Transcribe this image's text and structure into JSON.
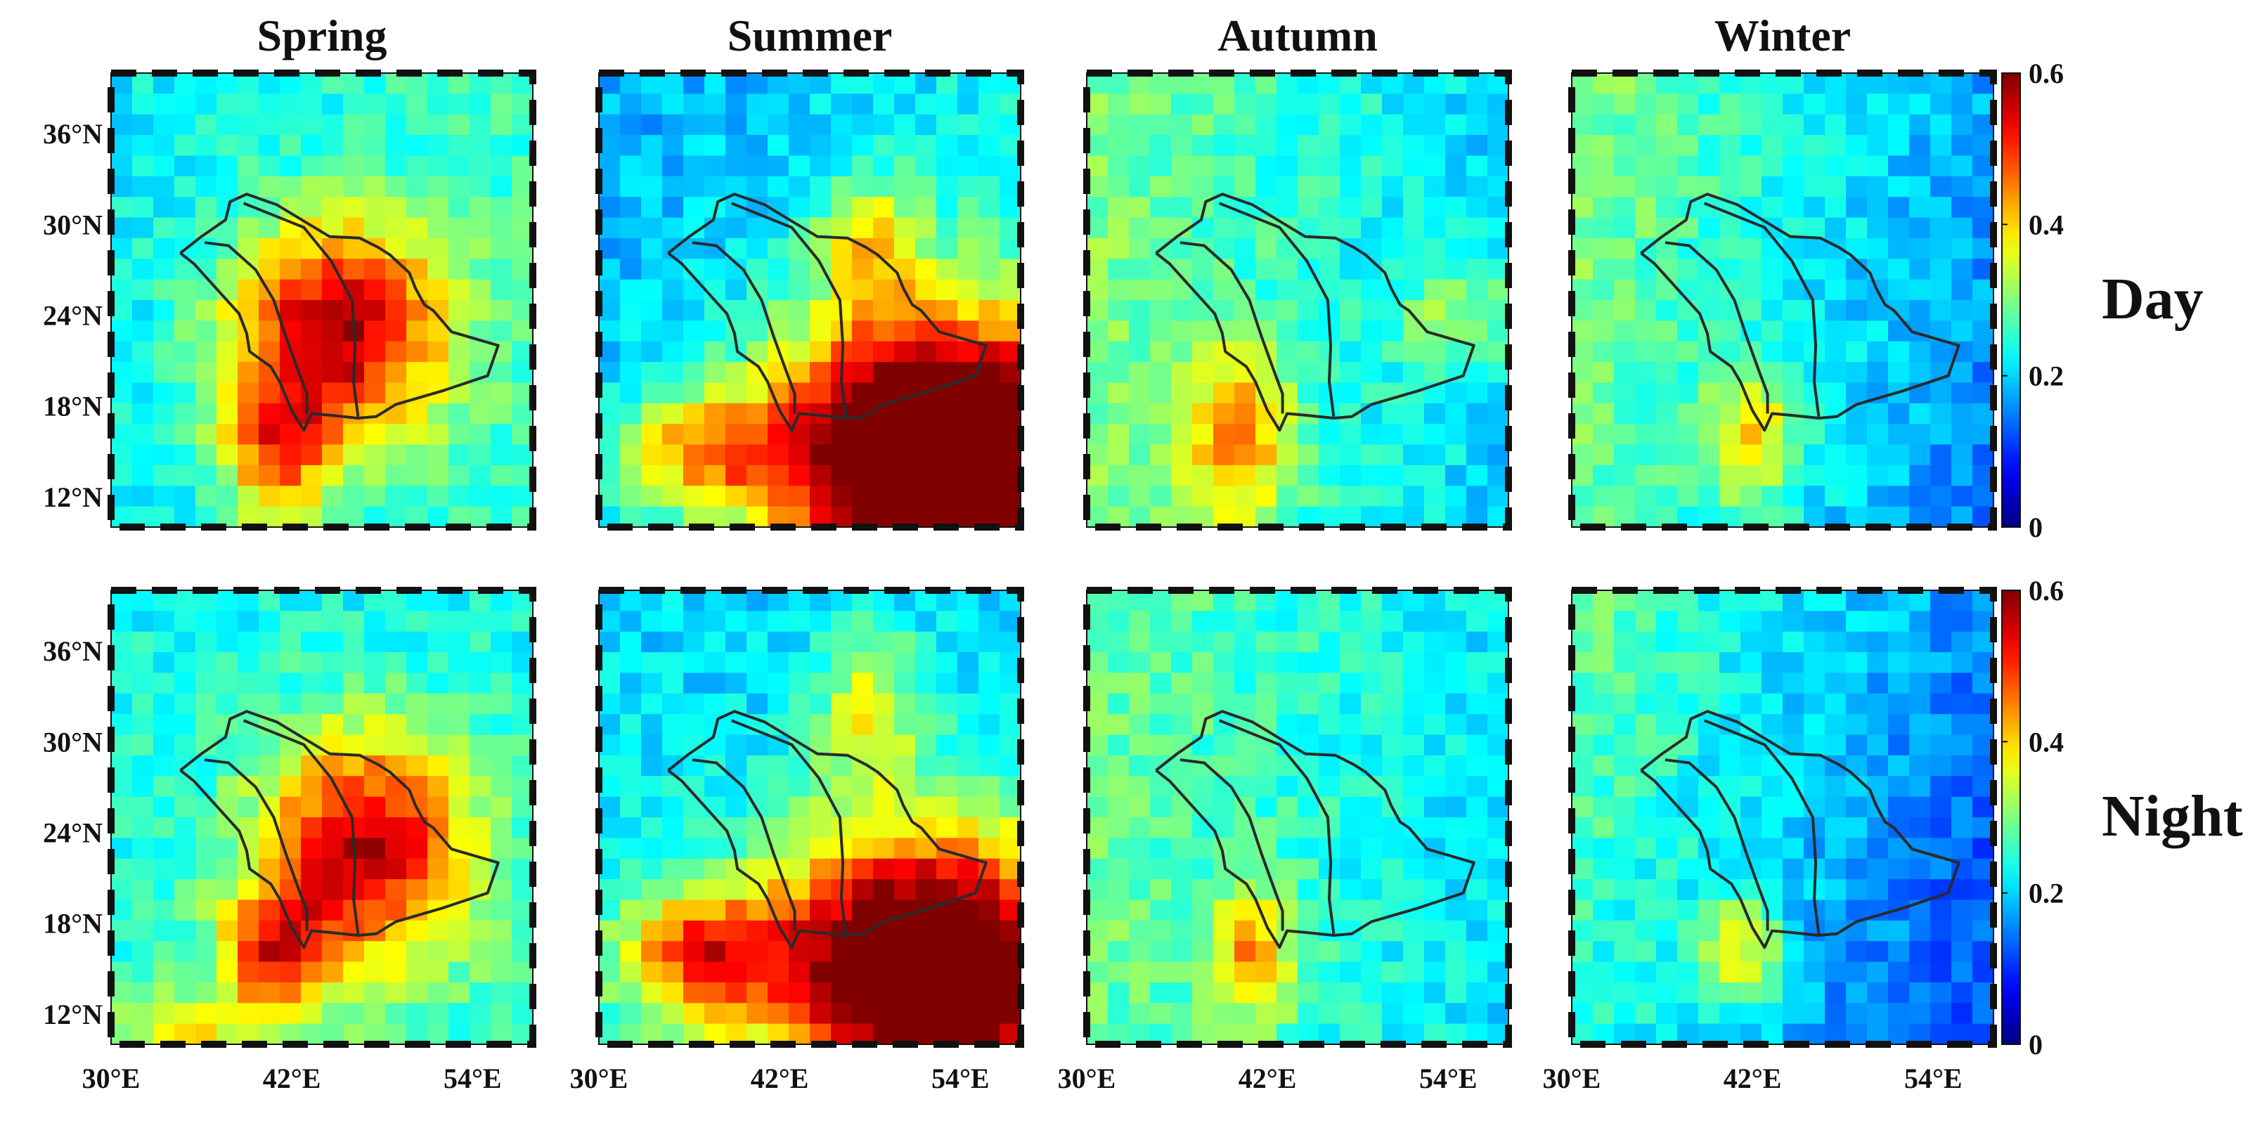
{
  "chart_data": {
    "type": "heatmap",
    "title": "",
    "columns": [
      "Spring",
      "Summer",
      "Autumn",
      "Winter"
    ],
    "rows": [
      "Day",
      "Night"
    ],
    "x_tick_labels": [
      "30°E",
      "42°E",
      "54°E"
    ],
    "x_tick_values": [
      30,
      42,
      54
    ],
    "y_tick_labels": [
      "36°N",
      "30°N",
      "24°N",
      "18°N",
      "12°N"
    ],
    "y_tick_values": [
      36,
      30,
      24,
      18,
      12
    ],
    "xlim": [
      30,
      58
    ],
    "ylim": [
      10,
      40
    ],
    "colorbar": {
      "min": 0,
      "max": 0.6,
      "ticks": [
        0,
        0.2,
        0.4,
        0.6
      ],
      "tick_labels": [
        "0",
        "0.2",
        "0.4",
        "0.6"
      ],
      "colormap": "jet"
    },
    "panels": [
      {
        "row": "Day",
        "season": "Spring",
        "base": 0.24,
        "trend": -0.02,
        "n_to_s": 0.0,
        "hotspots": [
          {
            "lon": 45,
            "lat": 23,
            "amp": 0.34,
            "sx": 5,
            "sy": 5
          },
          {
            "lon": 41,
            "lat": 15,
            "amp": 0.22,
            "sx": 2.5,
            "sy": 3.5
          }
        ]
      },
      {
        "row": "Day",
        "season": "Summer",
        "base": 0.22,
        "trend": -0.03,
        "n_to_s": 0.02,
        "hotspots": [
          {
            "lon": 52,
            "lat": 15,
            "amp": 0.6,
            "sx": 7,
            "sy": 6
          },
          {
            "lon": 48,
            "lat": 29,
            "amp": 0.15,
            "sx": 2.5,
            "sy": 3
          },
          {
            "lon": 37,
            "lat": 15,
            "amp": 0.2,
            "sx": 4,
            "sy": 2.5
          }
        ]
      },
      {
        "row": "Day",
        "season": "Autumn",
        "base": 0.25,
        "trend": 0.05,
        "n_to_s": 0.0,
        "hotspots": [
          {
            "lon": 40,
            "lat": 16,
            "amp": 0.2,
            "sx": 2.5,
            "sy": 4
          },
          {
            "lon": 55,
            "lat": 24,
            "amp": 0.1,
            "sx": 3,
            "sy": 3
          }
        ]
      },
      {
        "row": "Day",
        "season": "Winter",
        "base": 0.23,
        "trend": 0.07,
        "n_to_s": -0.01,
        "hotspots": [
          {
            "lon": 42,
            "lat": 16,
            "amp": 0.17,
            "sx": 2,
            "sy": 3
          }
        ]
      },
      {
        "row": "Night",
        "season": "Spring",
        "base": 0.24,
        "trend": 0.0,
        "n_to_s": 0.01,
        "hotspots": [
          {
            "lon": 47,
            "lat": 23,
            "amp": 0.32,
            "sx": 5,
            "sy": 5.5
          },
          {
            "lon": 41,
            "lat": 16,
            "amp": 0.25,
            "sx": 2.5,
            "sy": 3
          },
          {
            "lon": 35,
            "lat": 11,
            "amp": 0.12,
            "sx": 3,
            "sy": 2
          }
        ]
      },
      {
        "row": "Night",
        "season": "Summer",
        "base": 0.22,
        "trend": 0.0,
        "n_to_s": 0.02,
        "hotspots": [
          {
            "lon": 52,
            "lat": 15,
            "amp": 0.55,
            "sx": 7,
            "sy": 6
          },
          {
            "lon": 48,
            "lat": 32,
            "amp": 0.15,
            "sx": 2.5,
            "sy": 4
          },
          {
            "lon": 37,
            "lat": 16,
            "amp": 0.25,
            "sx": 4,
            "sy": 3
          }
        ]
      },
      {
        "row": "Night",
        "season": "Autumn",
        "base": 0.25,
        "trend": 0.04,
        "n_to_s": 0.0,
        "hotspots": [
          {
            "lon": 41,
            "lat": 16,
            "amp": 0.18,
            "sx": 2,
            "sy": 3
          }
        ]
      },
      {
        "row": "Night",
        "season": "Winter",
        "base": 0.2,
        "trend": 0.07,
        "n_to_s": -0.02,
        "hotspots": [
          {
            "lon": 41,
            "lat": 16,
            "amp": 0.18,
            "sx": 2,
            "sy": 2.5
          }
        ]
      }
    ],
    "outline": {
      "kingdom": [
        [
          34.6,
          28.1
        ],
        [
          36.0,
          29.2
        ],
        [
          37.6,
          30.3
        ],
        [
          37.9,
          31.5
        ],
        [
          39.0,
          32.0
        ],
        [
          41.0,
          31.3
        ],
        [
          44.5,
          29.2
        ],
        [
          46.5,
          29.1
        ],
        [
          47.7,
          28.5
        ],
        [
          48.5,
          28.0
        ],
        [
          49.8,
          26.8
        ],
        [
          50.2,
          25.8
        ],
        [
          50.8,
          24.7
        ],
        [
          51.4,
          24.3
        ],
        [
          52.6,
          22.9
        ],
        [
          55.7,
          22.0
        ],
        [
          55.0,
          20.0
        ],
        [
          52.0,
          19.0
        ],
        [
          48.9,
          18.1
        ],
        [
          47.6,
          17.3
        ],
        [
          46.4,
          17.2
        ],
        [
          44.5,
          17.4
        ],
        [
          43.3,
          17.5
        ],
        [
          42.8,
          16.4
        ],
        [
          42.0,
          17.7
        ],
        [
          41.2,
          19.6
        ],
        [
          40.6,
          20.6
        ],
        [
          39.2,
          21.6
        ],
        [
          39.0,
          22.8
        ],
        [
          38.5,
          24.1
        ],
        [
          37.5,
          25.2
        ],
        [
          36.5,
          26.3
        ],
        [
          35.5,
          27.4
        ],
        [
          34.6,
          28.1
        ]
      ],
      "inner_west": [
        [
          36.2,
          28.8
        ],
        [
          37.8,
          28.6
        ],
        [
          39.6,
          27.0
        ],
        [
          40.8,
          25.0
        ],
        [
          41.6,
          22.6
        ],
        [
          42.4,
          20.4
        ],
        [
          43.0,
          18.8
        ],
        [
          43.0,
          17.5
        ]
      ],
      "inner_mid": [
        [
          38.8,
          31.4
        ],
        [
          42.8,
          29.8
        ],
        [
          44.6,
          27.6
        ],
        [
          46.0,
          25.0
        ],
        [
          46.2,
          22.0
        ],
        [
          46.1,
          19.6
        ],
        [
          46.4,
          17.3
        ]
      ]
    }
  }
}
